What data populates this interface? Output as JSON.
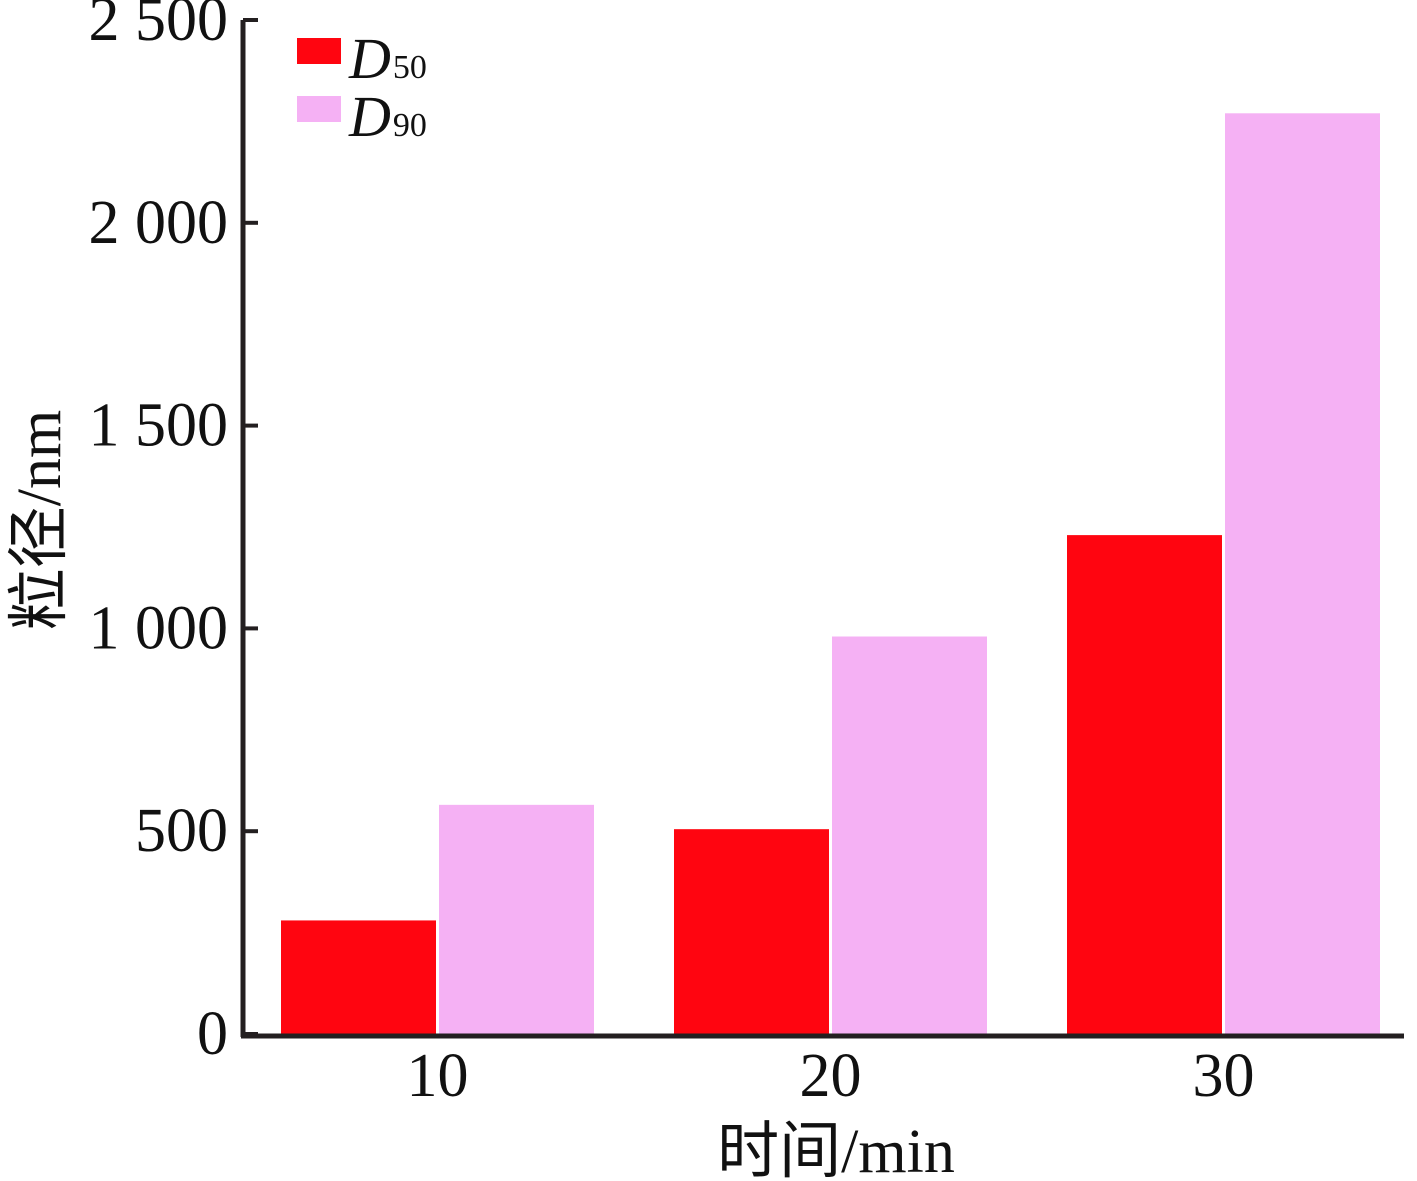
{
  "chart_data": {
    "type": "bar",
    "categories": [
      "10",
      "20",
      "30"
    ],
    "series": [
      {
        "name": "D50",
        "legend_main": "D",
        "legend_sub": "50",
        "color": "#ff0510",
        "values": [
          280,
          505,
          1230
        ]
      },
      {
        "name": "D90",
        "legend_main": "D",
        "legend_sub": "90",
        "color": "#f5b1f4",
        "values": [
          565,
          980,
          2270
        ]
      }
    ],
    "xlabel": "时间/min",
    "ylabel": "粒径/nm",
    "ylim": [
      0,
      2500
    ],
    "yticks": [
      0,
      500,
      1000,
      1500,
      2000,
      2500
    ],
    "ytick_labels": [
      "0",
      "500",
      "1 000",
      "1 500",
      "2 000",
      "2 500"
    ],
    "grid": false,
    "legend_position": "top-left"
  }
}
